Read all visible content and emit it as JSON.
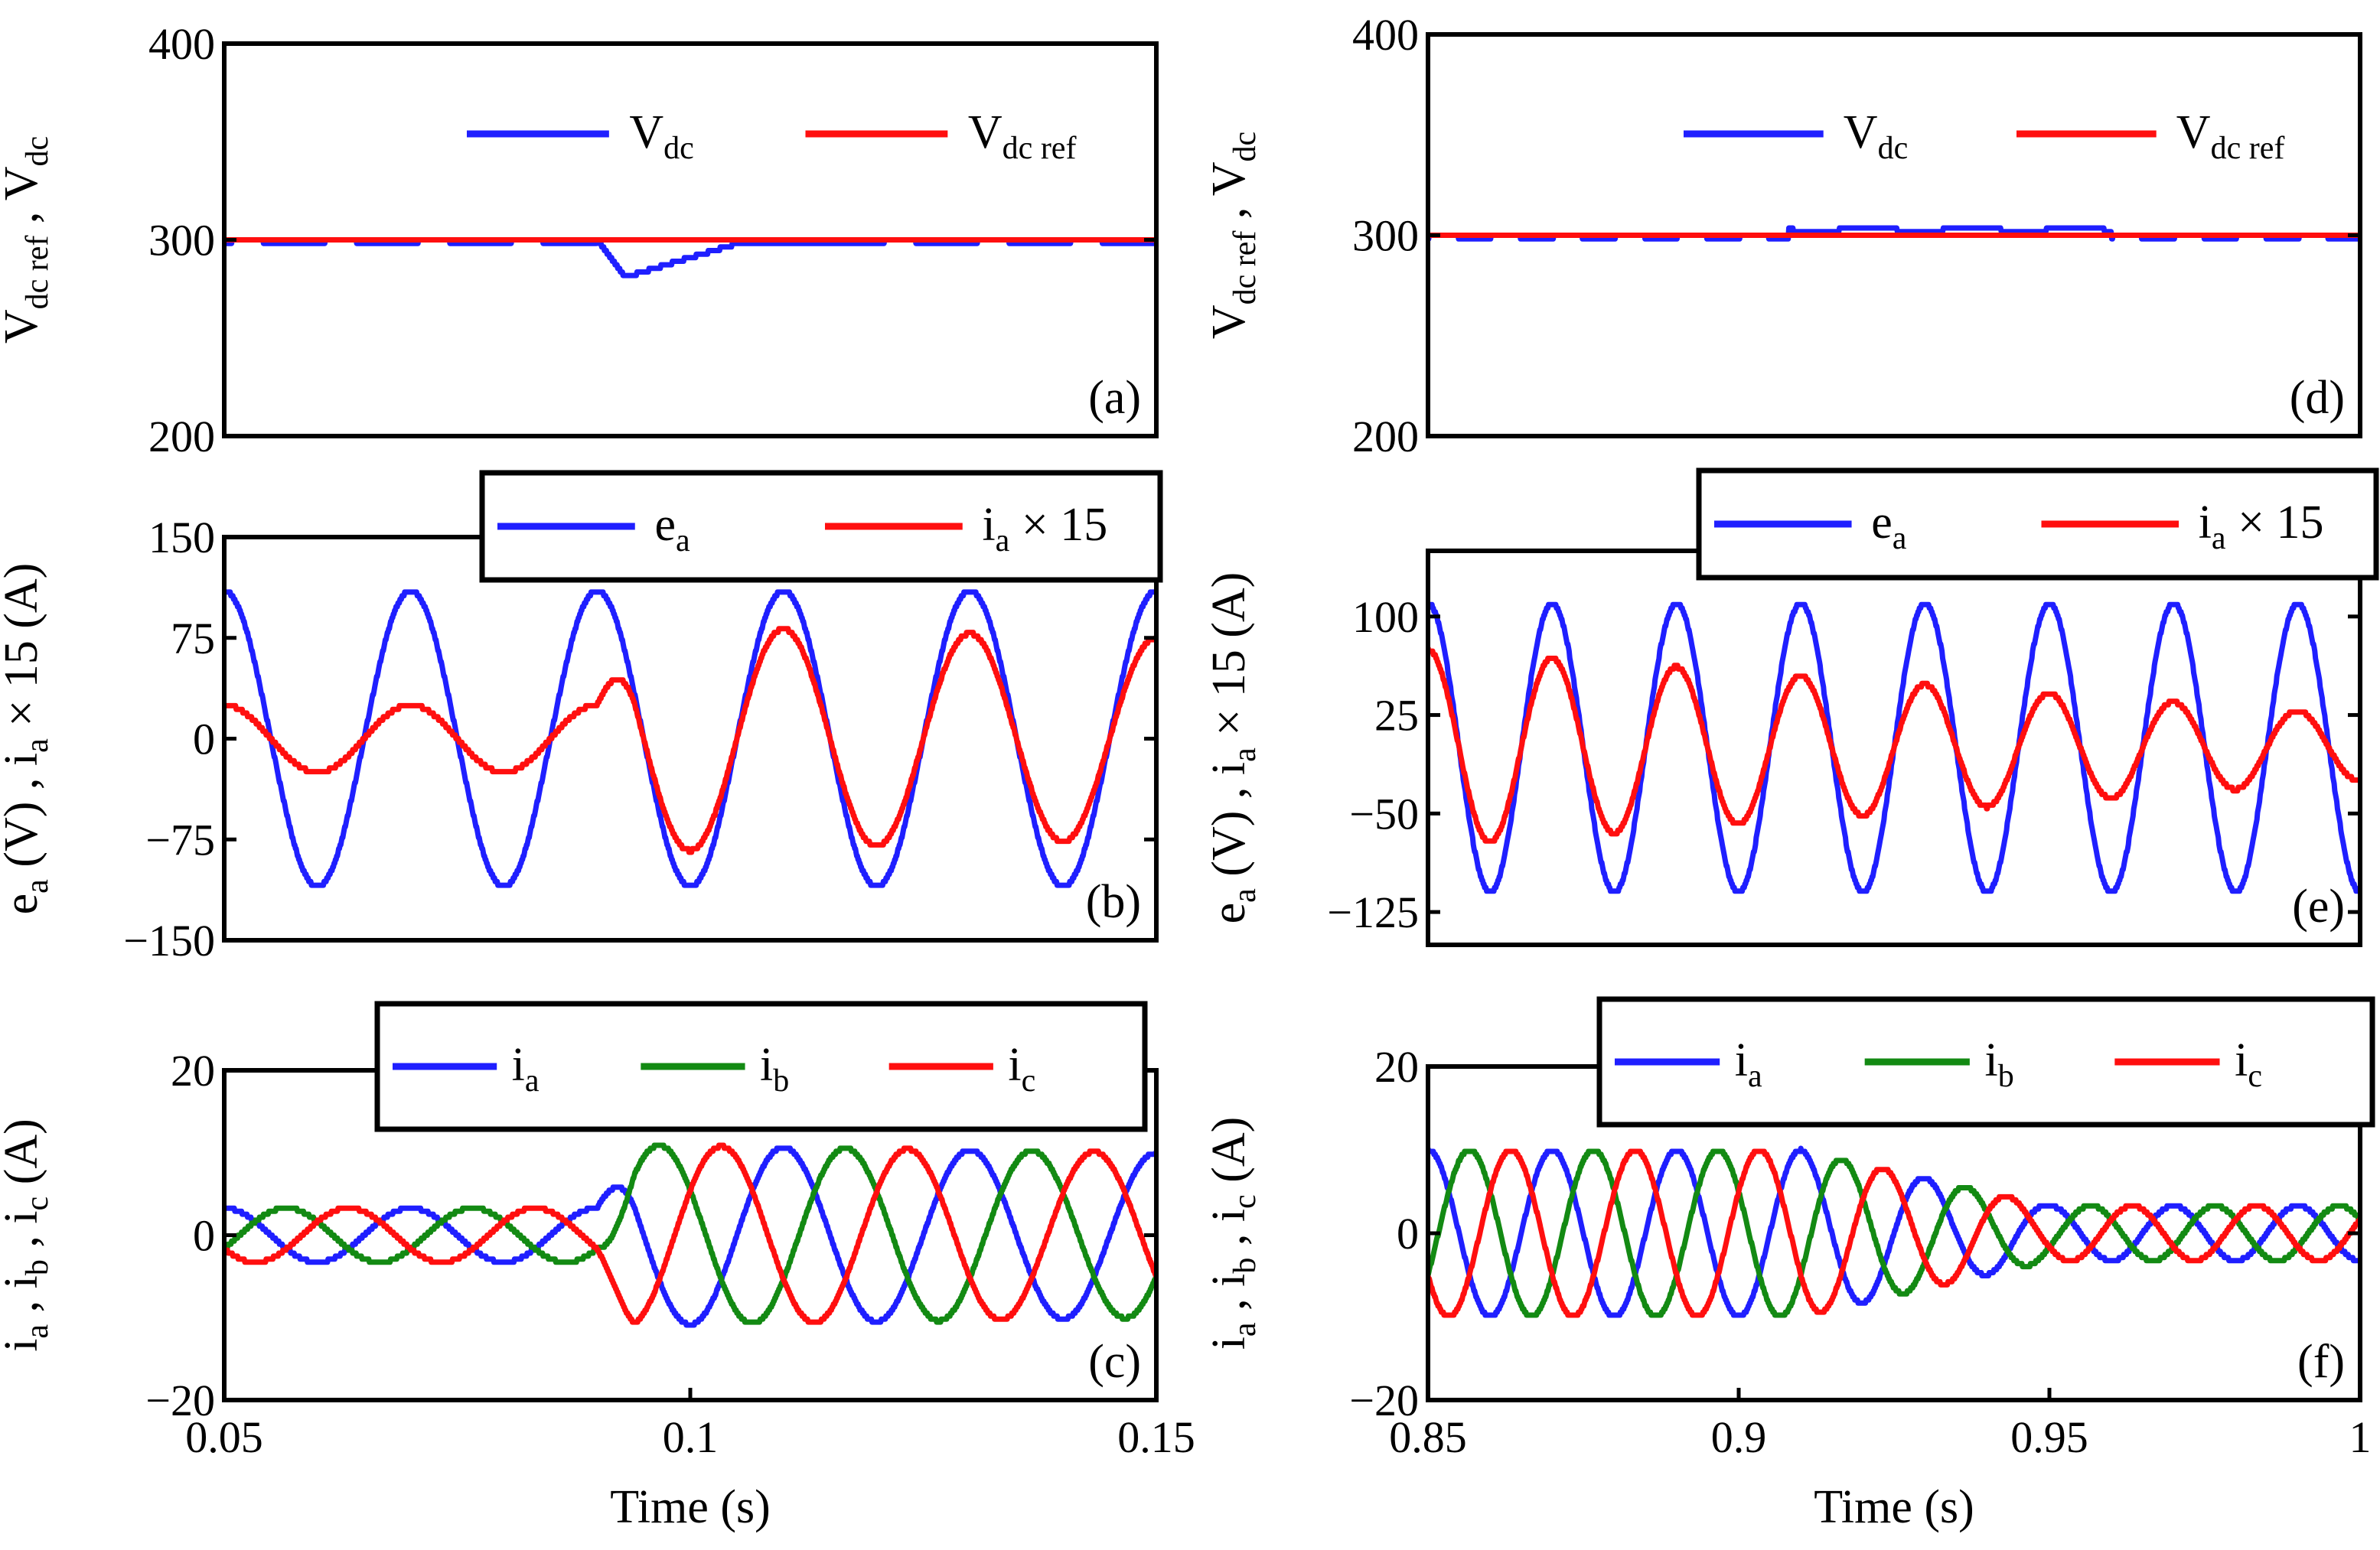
{
  "colors": {
    "blue": "#1f1fff",
    "red": "#ff0f0f",
    "green": "#138a13",
    "black": "#000000"
  },
  "chart_data": [
    {
      "id": "a",
      "type": "line",
      "panel_label": "(a)",
      "ylabel": {
        "p1": "V",
        "p1sub": "dc ref",
        "p2": " , V",
        "p2sub": "dc"
      },
      "xlabel": "",
      "xlim": [
        0.05,
        0.15
      ],
      "ylim": [
        200,
        400
      ],
      "yticks": [
        {
          "v": 200,
          "t": "200"
        },
        {
          "v": 300,
          "t": "300"
        },
        {
          "v": 400,
          "t": "400"
        }
      ],
      "xticks": [],
      "grid": false,
      "legend_placement": "top-right, inside",
      "series": [
        {
          "name": "V",
          "name_sub": "dc",
          "color": "blue",
          "wave": "vdc_a"
        },
        {
          "name": "V",
          "name_sub": "dc ref",
          "color": "red",
          "wave": "const",
          "value": 300
        }
      ]
    },
    {
      "id": "b",
      "type": "line",
      "panel_label": "(b)",
      "ylabel": {
        "p1": "e",
        "p1sub": "a",
        "p2": " (V) , i",
        "p2sub": "a",
        "p3": " × 15 (A)"
      },
      "xlabel": "",
      "xlim": [
        0.05,
        0.15
      ],
      "ylim": [
        -150,
        150
      ],
      "yticks": [
        {
          "v": -150,
          "t": "−150"
        },
        {
          "v": -75,
          "t": "−75"
        },
        {
          "v": 0,
          "t": "0"
        },
        {
          "v": 75,
          "t": "75"
        },
        {
          "v": 150,
          "t": "150"
        }
      ],
      "xticks": [],
      "grid": false,
      "legend_placement": "top-right, above axes",
      "series": [
        {
          "name": "e",
          "name_sub": "a",
          "color": "blue",
          "wave": "sine",
          "amp": [
            110,
            110
          ],
          "freq": 50,
          "phase": 0
        },
        {
          "name": "i",
          "name_sub": "a",
          "name_tail": " × 15",
          "color": "red",
          "wave": "sine_step",
          "amp_before": 25,
          "amp_after": [
            85,
            75
          ],
          "step_t": 0.09,
          "freq": 50,
          "phase": 0
        }
      ]
    },
    {
      "id": "c",
      "type": "line",
      "panel_label": "(c)",
      "ylabel": {
        "p1": "i",
        "p1sub": "a",
        "p2": " , i",
        "p2sub": "b",
        "p3": " , i",
        "p3sub": "c",
        "p4": " (A)"
      },
      "xlabel": "Time (s)",
      "xlim": [
        0.05,
        0.15
      ],
      "ylim": [
        -20,
        20
      ],
      "yticks": [
        {
          "v": -20,
          "t": "−20"
        },
        {
          "v": 0,
          "t": "0"
        },
        {
          "v": 20,
          "t": "20"
        }
      ],
      "xticks": [
        {
          "v": 0.05,
          "t": "0.05"
        },
        {
          "v": 0.1,
          "t": "0.1"
        },
        {
          "v": 0.15,
          "t": "0.15"
        }
      ],
      "grid": false,
      "legend_placement": "top-right, above axes",
      "series": [
        {
          "name": "i",
          "name_sub": "a",
          "color": "blue",
          "wave": "sine_step",
          "amp_before": 3.3,
          "amp_after": [
            11,
            10
          ],
          "step_t": 0.09,
          "freq": 50,
          "phase": 0
        },
        {
          "name": "i",
          "name_sub": "b",
          "color": "green",
          "wave": "sine_step",
          "amp_before": 3.3,
          "amp_after": [
            11,
            10
          ],
          "step_t": 0.09,
          "freq": 50,
          "phase": -120
        },
        {
          "name": "i",
          "name_sub": "c",
          "color": "red",
          "wave": "sine_step",
          "amp_before": 3.3,
          "amp_after": [
            11,
            10
          ],
          "step_t": 0.09,
          "freq": 50,
          "phase": 120
        }
      ]
    },
    {
      "id": "d",
      "type": "line",
      "panel_label": "(d)",
      "ylabel": {
        "p1": "V",
        "p1sub": "dc ref",
        "p2": " , V",
        "p2sub": "dc"
      },
      "xlabel": "",
      "xlim": [
        0.85,
        1.0
      ],
      "ylim": [
        200,
        400
      ],
      "yticks": [
        {
          "v": 200,
          "t": "200"
        },
        {
          "v": 300,
          "t": "300"
        },
        {
          "v": 400,
          "t": "400"
        }
      ],
      "xticks": [],
      "grid": false,
      "legend_placement": "top-right, inside",
      "series": [
        {
          "name": "V",
          "name_sub": "dc",
          "color": "blue",
          "wave": "vdc_d"
        },
        {
          "name": "V",
          "name_sub": "dc ref",
          "color": "red",
          "wave": "const",
          "value": 300
        }
      ]
    },
    {
      "id": "e",
      "type": "line",
      "panel_label": "(e)",
      "ylabel": {
        "p1": "e",
        "p1sub": "a",
        "p2": " (V) , i",
        "p2sub": "a",
        "p3": " × 15 (A)"
      },
      "xlabel": "",
      "xlim": [
        0.85,
        1.0
      ],
      "ylim": [
        -150,
        150
      ],
      "yticks": [
        {
          "v": -125,
          "t": "−125"
        },
        {
          "v": -50,
          "t": "−50"
        },
        {
          "v": 25,
          "t": "25"
        },
        {
          "v": 100,
          "t": "100"
        }
      ],
      "xticks": [],
      "grid": false,
      "legend_placement": "top-right, above axes",
      "series": [
        {
          "name": "e",
          "name_sub": "a",
          "color": "blue",
          "wave": "sine",
          "amp": [
            110,
            110
          ],
          "freq": 50,
          "phase": 0
        },
        {
          "name": "i",
          "name_sub": "a",
          "name_tail": " × 15",
          "color": "red",
          "wave": "sine",
          "amp": [
            75,
            25
          ],
          "freq": 50,
          "phase": 0
        }
      ]
    },
    {
      "id": "f",
      "type": "line",
      "panel_label": "(f)",
      "ylabel": {
        "p1": "i",
        "p1sub": "a",
        "p2": " , i",
        "p2sub": "b",
        "p3": " , i",
        "p3sub": "c",
        "p4": " (A)"
      },
      "xlabel": "Time (s)",
      "xlim": [
        0.85,
        1.0
      ],
      "ylim": [
        -20,
        20
      ],
      "yticks": [
        {
          "v": -20,
          "t": "−20"
        },
        {
          "v": 0,
          "t": "0"
        },
        {
          "v": 20,
          "t": "20"
        }
      ],
      "xticks": [
        {
          "v": 0.85,
          "t": "0.85"
        },
        {
          "v": 0.9,
          "t": "0.9"
        },
        {
          "v": 0.95,
          "t": "0.95"
        },
        {
          "v": 1.0,
          "t": "1"
        }
      ],
      "grid": false,
      "legend_placement": "top-right, above axes",
      "series": [
        {
          "name": "i",
          "name_sub": "a",
          "color": "blue",
          "wave": "sine_fade",
          "amp_a": 10,
          "amp_b": 3.3,
          "fade_t0": 0.91,
          "fade_t1": 0.95,
          "freq": 50,
          "phase": 0
        },
        {
          "name": "i",
          "name_sub": "b",
          "color": "green",
          "wave": "sine_fade",
          "amp_a": 10,
          "amp_b": 3.3,
          "fade_t0": 0.91,
          "fade_t1": 0.95,
          "freq": 50,
          "phase": -120
        },
        {
          "name": "i",
          "name_sub": "c",
          "color": "red",
          "wave": "sine_fade",
          "amp_a": 10,
          "amp_b": 3.3,
          "fade_t0": 0.91,
          "fade_t1": 0.95,
          "freq": 50,
          "phase": 120
        }
      ]
    }
  ]
}
